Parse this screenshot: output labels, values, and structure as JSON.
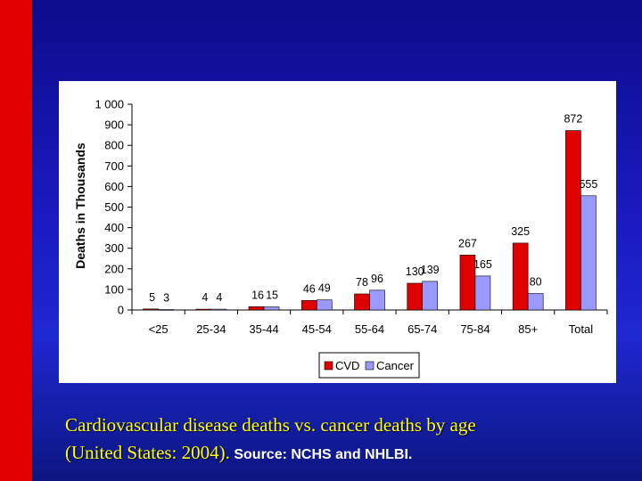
{
  "colors": {
    "background": "#1a1ac0",
    "left_bar": "#e00000",
    "cvd": "#e00000",
    "cancer": "#9999ff",
    "caption": "#ffff00",
    "source": "#ffffff"
  },
  "caption": {
    "line1": "Cardiovascular disease deaths vs. cancer deaths by age",
    "line2": "(United States: 2004).",
    "source": "Source: NCHS and NHLBI."
  },
  "chart_data": {
    "type": "bar",
    "title": "",
    "xlabel": "",
    "ylabel": "Deaths in Thousands",
    "ylim": [
      0,
      1000
    ],
    "yticks": [
      0,
      100,
      200,
      300,
      400,
      500,
      600,
      700,
      800,
      900,
      1000
    ],
    "ytick_labels": [
      "0",
      "100",
      "200",
      "300",
      "400",
      "500",
      "600",
      "700",
      "800",
      "900",
      "1 000"
    ],
    "categories": [
      "<25",
      "25-34",
      "35-44",
      "45-54",
      "55-64",
      "65-74",
      "75-84",
      "85+",
      "Total"
    ],
    "series": [
      {
        "name": "CVD",
        "values": [
          5,
          4,
          16,
          46,
          78,
          130,
          267,
          325,
          872
        ]
      },
      {
        "name": "Cancer",
        "values": [
          3,
          4,
          15,
          49,
          96,
          139,
          165,
          80,
          555
        ]
      }
    ],
    "legend": "bottom-center",
    "grid": false
  }
}
